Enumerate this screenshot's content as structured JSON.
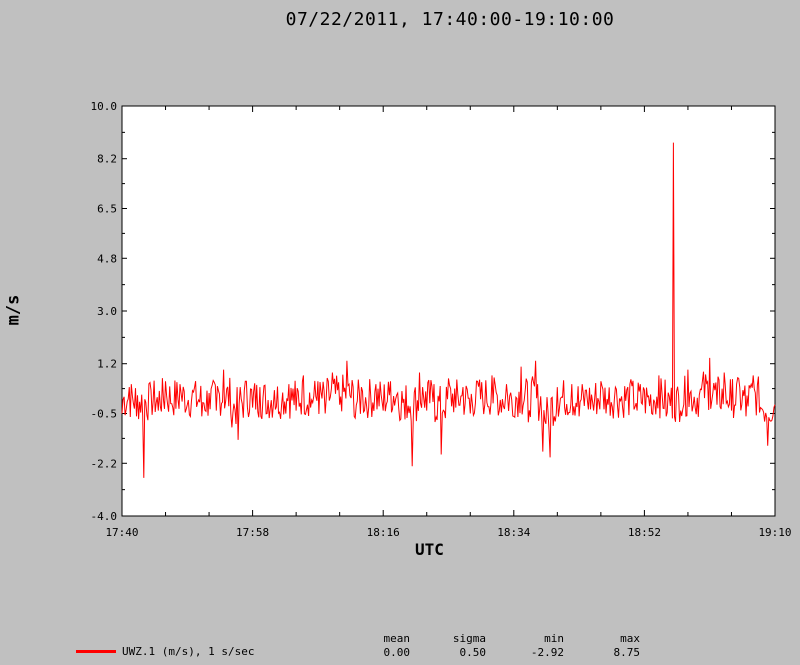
{
  "page": {
    "title": "07/22/2011, 17:40:00-19:10:00"
  },
  "chart_data": {
    "type": "line",
    "title": "07/22/2011, 17:40:00-19:10:00",
    "xlabel": "UTC",
    "ylabel": "m/s",
    "xlim": [
      "17:40",
      "19:10"
    ],
    "ylim": [
      -4.0,
      10.0
    ],
    "x_tick_labels": [
      "17:40",
      "17:58",
      "18:16",
      "18:34",
      "18:52",
      "19:10"
    ],
    "y_tick_labels": [
      "10.0",
      "8.2",
      "6.5",
      "4.8",
      "3.0",
      "1.2",
      "-0.5",
      "-2.2",
      "-4.0"
    ],
    "y_ticks": [
      10.0,
      8.2,
      6.5,
      4.8,
      3.0,
      1.2,
      -0.5,
      -2.2,
      -4.0
    ],
    "series": [
      {
        "name": "UWZ.1 (m/s), 1 s/sec",
        "color": "#ff0000",
        "x_minutes": [
          0,
          1,
          2,
          3,
          4,
          5,
          6,
          7,
          8,
          9,
          10,
          11,
          12,
          13,
          14,
          15,
          16,
          17,
          18,
          19,
          20,
          21,
          22,
          23,
          24,
          25,
          26,
          27,
          28,
          29,
          30,
          31,
          32,
          33,
          34,
          35,
          36,
          37,
          38,
          39,
          40,
          41,
          42,
          43,
          44,
          45,
          46,
          47,
          48,
          49,
          50,
          51,
          52,
          53,
          54,
          55,
          56,
          57,
          58,
          59,
          60,
          61,
          62,
          63,
          64,
          65,
          66,
          67,
          68,
          69,
          70,
          71,
          72,
          73,
          74,
          75,
          76,
          77,
          78,
          79,
          80,
          81,
          82,
          83,
          84,
          85,
          86,
          87,
          88,
          89,
          90
        ],
        "values": [
          -0.5,
          0.4,
          -0.6,
          -2.7,
          0.3,
          -0.4,
          0.6,
          -0.3,
          0.5,
          -0.2,
          0.4,
          -0.6,
          0.2,
          -0.4,
          1.0,
          -0.5,
          -1.4,
          0.6,
          -0.3,
          0.4,
          -0.5,
          0.3,
          -0.2,
          0.5,
          -0.4,
          0.8,
          -0.3,
          0.6,
          -0.5,
          0.9,
          -0.2,
          1.3,
          -0.6,
          0.4,
          -0.3,
          0.5,
          -0.4,
          0.6,
          0.2,
          -0.7,
          -2.3,
          0.9,
          -0.4,
          0.5,
          -1.9,
          0.7,
          -0.3,
          0.4,
          -0.5,
          0.6,
          -0.2,
          0.8,
          -0.4,
          0.5,
          -0.6,
          1.1,
          -0.8,
          1.3,
          -1.8,
          -2.0,
          0.4,
          -0.3,
          0.5,
          -0.6,
          0.3,
          -0.4,
          0.6,
          -0.2,
          0.4,
          -0.3,
          0.5,
          -0.4,
          0.3,
          -0.5,
          0.8,
          -0.6,
          8.75,
          -0.4,
          1.0,
          -0.3,
          0.6,
          1.4,
          -0.2,
          0.9,
          -0.4,
          0.7,
          -0.6,
          0.8,
          -0.3,
          -1.6,
          -0.2
        ]
      }
    ],
    "stats": {
      "headers": [
        "mean",
        "sigma",
        "min",
        "max"
      ],
      "values": [
        "0.00",
        "0.50",
        "-2.92",
        "8.75"
      ]
    },
    "legend_placement": "bottom-left",
    "grid": false
  }
}
